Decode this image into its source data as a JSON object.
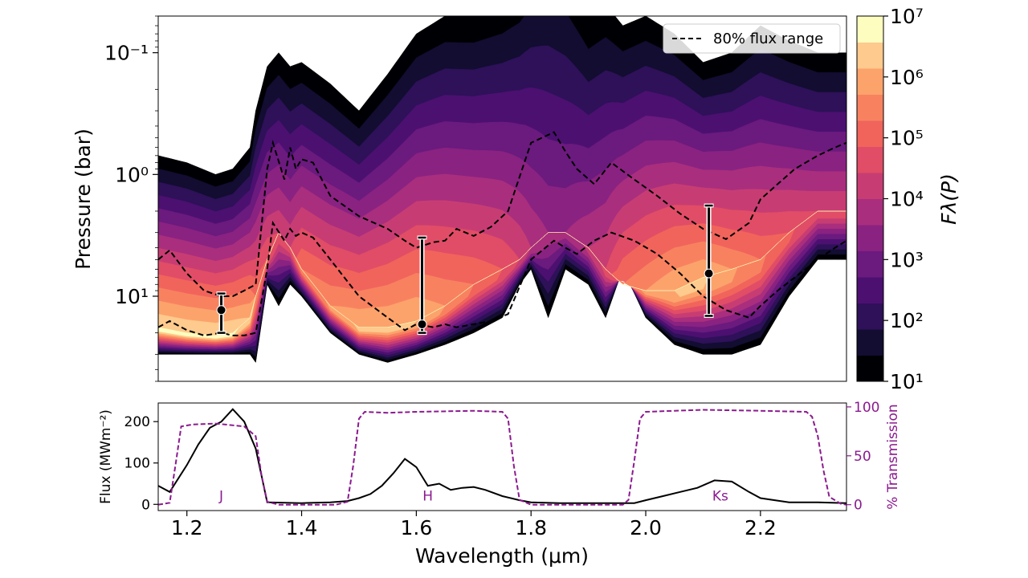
{
  "chart_data": [
    {
      "type": "heatmap",
      "title": "",
      "xlabel": "",
      "ylabel": "Pressure (bar)",
      "xlim": [
        1.15,
        2.35
      ],
      "ylim": [
        50,
        0.05
      ],
      "yscale": "log",
      "ytick_labels": [
        "10⁻¹",
        "10⁰",
        "10¹"
      ],
      "legend": {
        "placement": "top-right",
        "entries": [
          {
            "label": "80% flux range",
            "style": "dashed"
          }
        ]
      },
      "colorbar": {
        "label": "Fλ(P)",
        "scale": "log",
        "range": [
          10,
          10000000
        ],
        "tick_labels": [
          "10¹",
          "10²",
          "10³",
          "10⁴",
          "10⁵",
          "10⁶",
          "10⁷"
        ],
        "colors": [
          "#000004",
          "#120d31",
          "#2e1159",
          "#4c1071",
          "#6b1a7e",
          "#8a2281",
          "#a92e7e",
          "#c73d73",
          "#e14d66",
          "#f1645c",
          "#f88260",
          "#fca36b",
          "#feca8d",
          "#fcfdbf"
        ]
      },
      "flux_field": {
        "wavelength": [
          1.15,
          1.2,
          1.25,
          1.28,
          1.31,
          1.32,
          1.34,
          1.36,
          1.38,
          1.4,
          1.45,
          1.5,
          1.55,
          1.6,
          1.65,
          1.7,
          1.75,
          1.78,
          1.8,
          1.83,
          1.86,
          1.9,
          1.93,
          1.96,
          2.0,
          2.05,
          2.1,
          2.15,
          2.2,
          2.25,
          2.3,
          2.35
        ],
        "top_pressure": [
          0.7,
          0.8,
          1.0,
          0.9,
          0.6,
          0.3,
          0.13,
          0.1,
          0.13,
          0.12,
          0.18,
          0.3,
          0.15,
          0.07,
          0.05,
          0.05,
          0.04,
          0.03,
          0.02,
          0.015,
          0.02,
          0.05,
          0.04,
          0.06,
          0.05,
          0.07,
          0.12,
          0.1,
          0.06,
          0.08,
          0.1,
          0.1
        ],
        "bottom_pressure": [
          30,
          30,
          30,
          30,
          30,
          35,
          8,
          12,
          8,
          10,
          20,
          30,
          35,
          30,
          25,
          20,
          15,
          8,
          6,
          15,
          6,
          8,
          15,
          6,
          15,
          25,
          30,
          30,
          25,
          10,
          5,
          5
        ],
        "peak_pressure": [
          18,
          20,
          21,
          20,
          15,
          10,
          5,
          3,
          4,
          6,
          12,
          18,
          18,
          16,
          12,
          8,
          6,
          5,
          4,
          3,
          3,
          4,
          6,
          8,
          9,
          9,
          7,
          6,
          5,
          3,
          2,
          2
        ],
        "peak_level": [
          13,
          13,
          13,
          13,
          12,
          10,
          9,
          8,
          8,
          10,
          11,
          12,
          12,
          12,
          11,
          10,
          9,
          8,
          7,
          6,
          6,
          7,
          8,
          10,
          11,
          12,
          12,
          11,
          10,
          9,
          8,
          8
        ]
      },
      "series": [
        {
          "name": "80% flux range",
          "style": "dashed",
          "x": [
            1.15,
            1.17,
            1.2,
            1.23,
            1.26,
            1.28,
            1.3,
            1.32,
            1.34,
            1.35,
            1.37,
            1.38,
            1.39,
            1.4,
            1.42,
            1.45,
            1.5,
            1.55,
            1.58,
            1.6,
            1.63,
            1.65,
            1.67,
            1.7,
            1.73,
            1.76,
            1.8,
            1.84,
            1.86,
            1.88,
            1.91,
            1.94,
            1.98,
            2.02,
            2.06,
            2.1,
            2.14,
            2.18,
            2.2,
            2.23,
            2.26,
            2.3,
            2.33,
            2.35
          ],
          "y": [
            5,
            4.2,
            6.5,
            9,
            10,
            10,
            9,
            8,
            0.9,
            0.55,
            1.1,
            0.6,
            0.9,
            0.75,
            0.8,
            1.5,
            2.2,
            2.8,
            3.5,
            4,
            3.6,
            3.5,
            2.8,
            3.2,
            2.7,
            2.0,
            0.55,
            0.45,
            0.65,
            0.9,
            1.2,
            0.8,
            1.1,
            1.5,
            2.1,
            2.8,
            3.4,
            2.5,
            1.6,
            1.2,
            0.9,
            0.7,
            0.6,
            0.55
          ]
        },
        {
          "name": "",
          "style": "dashed",
          "x": [
            1.15,
            1.17,
            1.2,
            1.23,
            1.26,
            1.28,
            1.3,
            1.32,
            1.34,
            1.35,
            1.37,
            1.38,
            1.39,
            1.4,
            1.42,
            1.45,
            1.5,
            1.55,
            1.58,
            1.6,
            1.63,
            1.65,
            1.67,
            1.7,
            1.73,
            1.76,
            1.8,
            1.84,
            1.86,
            1.88,
            1.91,
            1.94,
            1.98,
            2.02,
            2.06,
            2.1,
            2.14,
            2.18,
            2.2,
            2.23,
            2.26,
            2.3,
            2.33,
            2.35
          ],
          "y": [
            18,
            16,
            19,
            21,
            20,
            21,
            21,
            20,
            6,
            2.5,
            3.5,
            2.8,
            3.2,
            3.0,
            3.3,
            5,
            10,
            15,
            19,
            17,
            18,
            17,
            18,
            17,
            16,
            14,
            5,
            3.5,
            4,
            4.5,
            3.5,
            3.0,
            3.5,
            4.5,
            6.5,
            10,
            13,
            15,
            12,
            9,
            7,
            5,
            4,
            3.5
          ]
        }
      ],
      "error_bars": [
        {
          "x": 1.26,
          "y": 13,
          "low": 9.5,
          "high": 20
        },
        {
          "x": 1.61,
          "y": 17,
          "low": 3.3,
          "high": 20
        },
        {
          "x": 2.11,
          "y": 6.5,
          "low": 1.8,
          "high": 14.5
        }
      ]
    },
    {
      "type": "line",
      "title": "",
      "xlabel": "Wavelength (μm)",
      "ylabel": "Flux (MWm⁻²)",
      "y2label": "% Transmission",
      "xlim": [
        1.15,
        2.35
      ],
      "ylim": [
        -15,
        245
      ],
      "y2lim": [
        -6,
        104
      ],
      "xticks": [
        1.2,
        1.4,
        1.6,
        1.8,
        2.0,
        2.2
      ],
      "xtick_labels": [
        "1.2",
        "1.4",
        "1.6",
        "1.8",
        "2.0",
        "2.2"
      ],
      "yticks": [
        0,
        100,
        200
      ],
      "ytick_labels": [
        "0",
        "100",
        "200"
      ],
      "y2ticks": [
        0,
        50,
        100
      ],
      "y2tick_labels": [
        "0",
        "50",
        "100"
      ],
      "series": [
        {
          "name": "",
          "axis": "left",
          "color": "#000000",
          "x": [
            1.15,
            1.17,
            1.2,
            1.22,
            1.24,
            1.26,
            1.28,
            1.3,
            1.32,
            1.34,
            1.4,
            1.45,
            1.48,
            1.5,
            1.52,
            1.54,
            1.56,
            1.58,
            1.6,
            1.62,
            1.64,
            1.66,
            1.68,
            1.7,
            1.72,
            1.75,
            1.78,
            1.8,
            1.85,
            1.9,
            1.95,
            1.98,
            2.0,
            2.03,
            2.06,
            2.09,
            2.12,
            2.15,
            2.18,
            2.2,
            2.25,
            2.3,
            2.35
          ],
          "y": [
            45,
            30,
            95,
            145,
            185,
            200,
            230,
            200,
            135,
            5,
            3,
            5,
            8,
            15,
            25,
            45,
            75,
            110,
            90,
            45,
            50,
            35,
            40,
            42,
            35,
            20,
            10,
            5,
            3,
            3,
            3,
            3,
            10,
            20,
            30,
            40,
            58,
            55,
            30,
            15,
            5,
            5,
            3
          ]
        },
        {
          "name": "",
          "axis": "right",
          "color": "#8b1a8f",
          "style": "dashed",
          "x": [
            1.15,
            1.17,
            1.18,
            1.19,
            1.21,
            1.25,
            1.3,
            1.32,
            1.33,
            1.34,
            1.36,
            1.46,
            1.48,
            1.49,
            1.5,
            1.51,
            1.55,
            1.6,
            1.7,
            1.75,
            1.76,
            1.77,
            1.78,
            1.8,
            1.96,
            1.97,
            1.98,
            1.99,
            2.0,
            2.05,
            2.1,
            2.2,
            2.28,
            2.29,
            2.3,
            2.31,
            2.32,
            2.34,
            2.35
          ],
          "y": [
            0,
            2,
            40,
            80,
            82,
            83,
            80,
            70,
            30,
            3,
            0,
            0,
            3,
            40,
            88,
            95,
            94,
            95,
            96,
            95,
            88,
            40,
            5,
            0,
            0,
            5,
            45,
            88,
            95,
            96,
            97,
            96,
            95,
            90,
            70,
            35,
            8,
            1,
            0
          ]
        }
      ],
      "annotations": [
        {
          "text": "J",
          "x": 1.26,
          "y": 5
        },
        {
          "text": "H",
          "x": 1.62,
          "y": 5
        },
        {
          "text": "Ks",
          "x": 2.13,
          "y": 5
        }
      ]
    }
  ]
}
